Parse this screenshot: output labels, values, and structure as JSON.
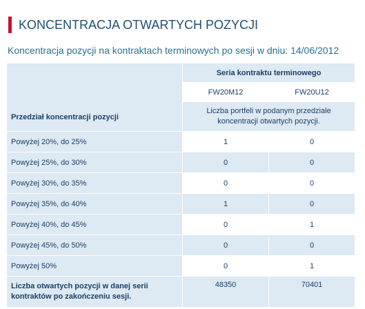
{
  "header": {
    "title": "KONCENTRACJA OTWARTYCH POZYCJI",
    "subtitle": "Koncentracja pozycji na kontraktach terminowych po sesji w dniu: 14/06/2012"
  },
  "table": {
    "series_header": "Seria kontraktu terminowego",
    "columns": [
      "FW20M12",
      "FW20U12"
    ],
    "row_header": "Przedział koncentracji pozycji",
    "note": "Liczba portfeli w podanym przedziale koncentracji otwartych pozycji.",
    "rows": [
      [
        "Powyżej 20%, do 25%",
        "1",
        "0"
      ],
      [
        "Powyżej 25%, do 30%",
        "0",
        "0"
      ],
      [
        "Powyżej 30%, do 35%",
        "0",
        "0"
      ],
      [
        "Powyżej 35%, do 40%",
        "1",
        "0"
      ],
      [
        "Powyżej 40%, do 45%",
        "0",
        "1"
      ],
      [
        "Powyżej 45%, do 50%",
        "0",
        "0"
      ],
      [
        "Powyżej 50%",
        "0",
        "1"
      ]
    ],
    "footer": [
      "Liczba otwartych pozycji w danej serii kontraktów po zakończeniu sesji.",
      "48350",
      "70401"
    ]
  }
}
